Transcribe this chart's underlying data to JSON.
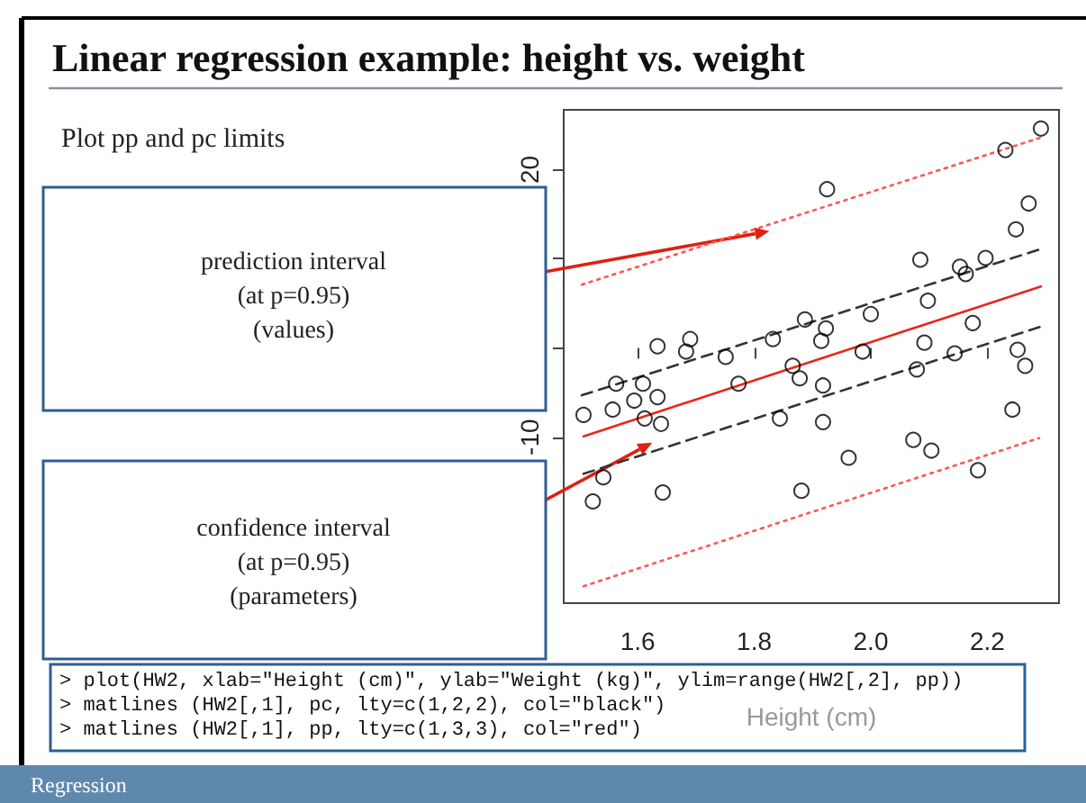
{
  "chart_data": {
    "type": "scatter",
    "title": "Linear regression example: height vs. weight",
    "subtitle": "Plot pp and pc limits",
    "xlabel": "Height (cm)",
    "x": [
      2.292,
      2.231,
      1.925,
      2.271,
      2.249,
      2.085,
      2.197,
      2.153,
      2.163,
      2.098,
      2.0,
      1.887,
      2.175,
      1.923,
      1.832,
      1.915,
      1.69,
      1.634,
      1.683,
      1.751,
      2.092,
      2.252,
      1.986,
      2.144,
      2.265,
      1.866,
      2.079,
      1.563,
      1.609,
      1.773,
      1.878,
      1.918,
      1.594,
      1.634,
      1.557,
      1.507,
      1.612,
      1.64,
      1.844,
      1.918,
      2.243,
      2.073,
      2.104,
      1.962,
      1.541,
      1.523,
      1.643,
      1.881,
      2.184
    ],
    "values": [
      24.6,
      22.2,
      17.8,
      16.2,
      13.3,
      9.9,
      10.1,
      9.1,
      8.3,
      5.3,
      3.8,
      3.2,
      2.8,
      2.2,
      1.0,
      0.8,
      1.0,
      0.2,
      -0.4,
      -1.0,
      0.6,
      -0.2,
      -0.4,
      -0.6,
      -2.0,
      -2.0,
      -2.4,
      -4.0,
      -4.0,
      -4.0,
      -3.4,
      -4.2,
      -5.9,
      -5.5,
      -6.9,
      -7.5,
      -7.9,
      -8.5,
      -7.9,
      -8.3,
      -6.9,
      -10.3,
      -11.5,
      -12.3,
      -14.5,
      -17.2,
      -16.2,
      -16.0,
      -13.7
    ],
    "color": "#000000",
    "marker": "circle",
    "series": [
      {
        "type": "line",
        "marker": "none",
        "color": "#e8261c",
        "line_style": "solid",
        "x": [
          1.507,
          2.292
        ],
        "values": [
          -9.9,
          6.9
        ]
      },
      {
        "type": "line",
        "marker": "none",
        "color": "#333333",
        "line_style": "dashed",
        "x": [
          1.504,
          2.292
        ],
        "values": [
          -5.3,
          11.1
        ]
      },
      {
        "type": "line",
        "marker": "none",
        "color": "#333333",
        "line_style": "dashed",
        "x": [
          1.507,
          2.292
        ],
        "values": [
          -14.1,
          2.4
        ]
      },
      {
        "type": "line",
        "marker": "none",
        "color": "#ff5555",
        "line_style": "dotted",
        "x": [
          1.504,
          2.292
        ],
        "values": [
          7.1,
          23.6
        ]
      },
      {
        "type": "line",
        "marker": "none",
        "color": "#ff5555",
        "line_style": "dotted",
        "x": [
          1.507,
          2.289
        ],
        "values": [
          -26.7,
          -10.1
        ]
      }
    ],
    "xlim": [
      1.473,
      2.323
    ],
    "xticks": [
      1.6,
      1.8,
      {
        "value": 2.0,
        "label": "2.0"
      },
      2.2
    ],
    "ylim": [
      -28.6,
      26.7
    ],
    "yticks": [
      -10,
      {
        "value": 0,
        "label": null
      },
      {
        "value": 10,
        "label": null
      },
      20
    ],
    "grid": false,
    "annotations": [
      {
        "text": "prediction interval\n(at p=0.95)\n(values)",
        "x": 1.826,
        "y": 13.1
      },
      {
        "text": "confidence interval\n(at p=0.95)\n(parameters)",
        "x": 1.625,
        "y": -10.6
      },
      "> plot(HW2, xlab=\"Height (cm)\", ylab=\"Weight (kg)\", ylim=range(HW2[,2], pp))\n> matlines (HW2[,1], pc, lty=c(1,2,2), col=\"black\")\n> matlines (HW2[,1], pp, lty=c(1,3,3), col=\"red\")",
      "Regression"
    ]
  }
}
